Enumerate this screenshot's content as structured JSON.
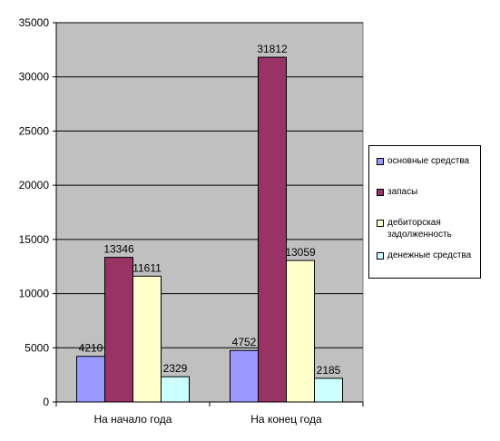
{
  "chart_data": {
    "type": "bar",
    "categories": [
      "На начало года",
      "На конец года"
    ],
    "series": [
      {
        "name": "основные средства",
        "values": [
          4210,
          4752
        ],
        "color": "#9999ff"
      },
      {
        "name": "запасы",
        "values": [
          13346,
          31812
        ],
        "color": "#993366"
      },
      {
        "name": "дебиторская задолженность",
        "values": [
          11611,
          13059
        ],
        "color": "#ffffcc"
      },
      {
        "name": "денежные средства",
        "values": [
          2329,
          2185
        ],
        "color": "#ccffff"
      }
    ],
    "ylim": [
      0,
      35000
    ],
    "yticks": [
      0,
      5000,
      10000,
      15000,
      20000,
      25000,
      30000,
      35000
    ],
    "ytick_labels": [
      "0",
      "5000",
      "10000",
      "15000",
      "20000",
      "25000",
      "30000",
      "35000"
    ],
    "grid": true,
    "legend": "right",
    "plot_background": "#c0c0c0",
    "title": "",
    "xlabel": "",
    "ylabel": ""
  }
}
